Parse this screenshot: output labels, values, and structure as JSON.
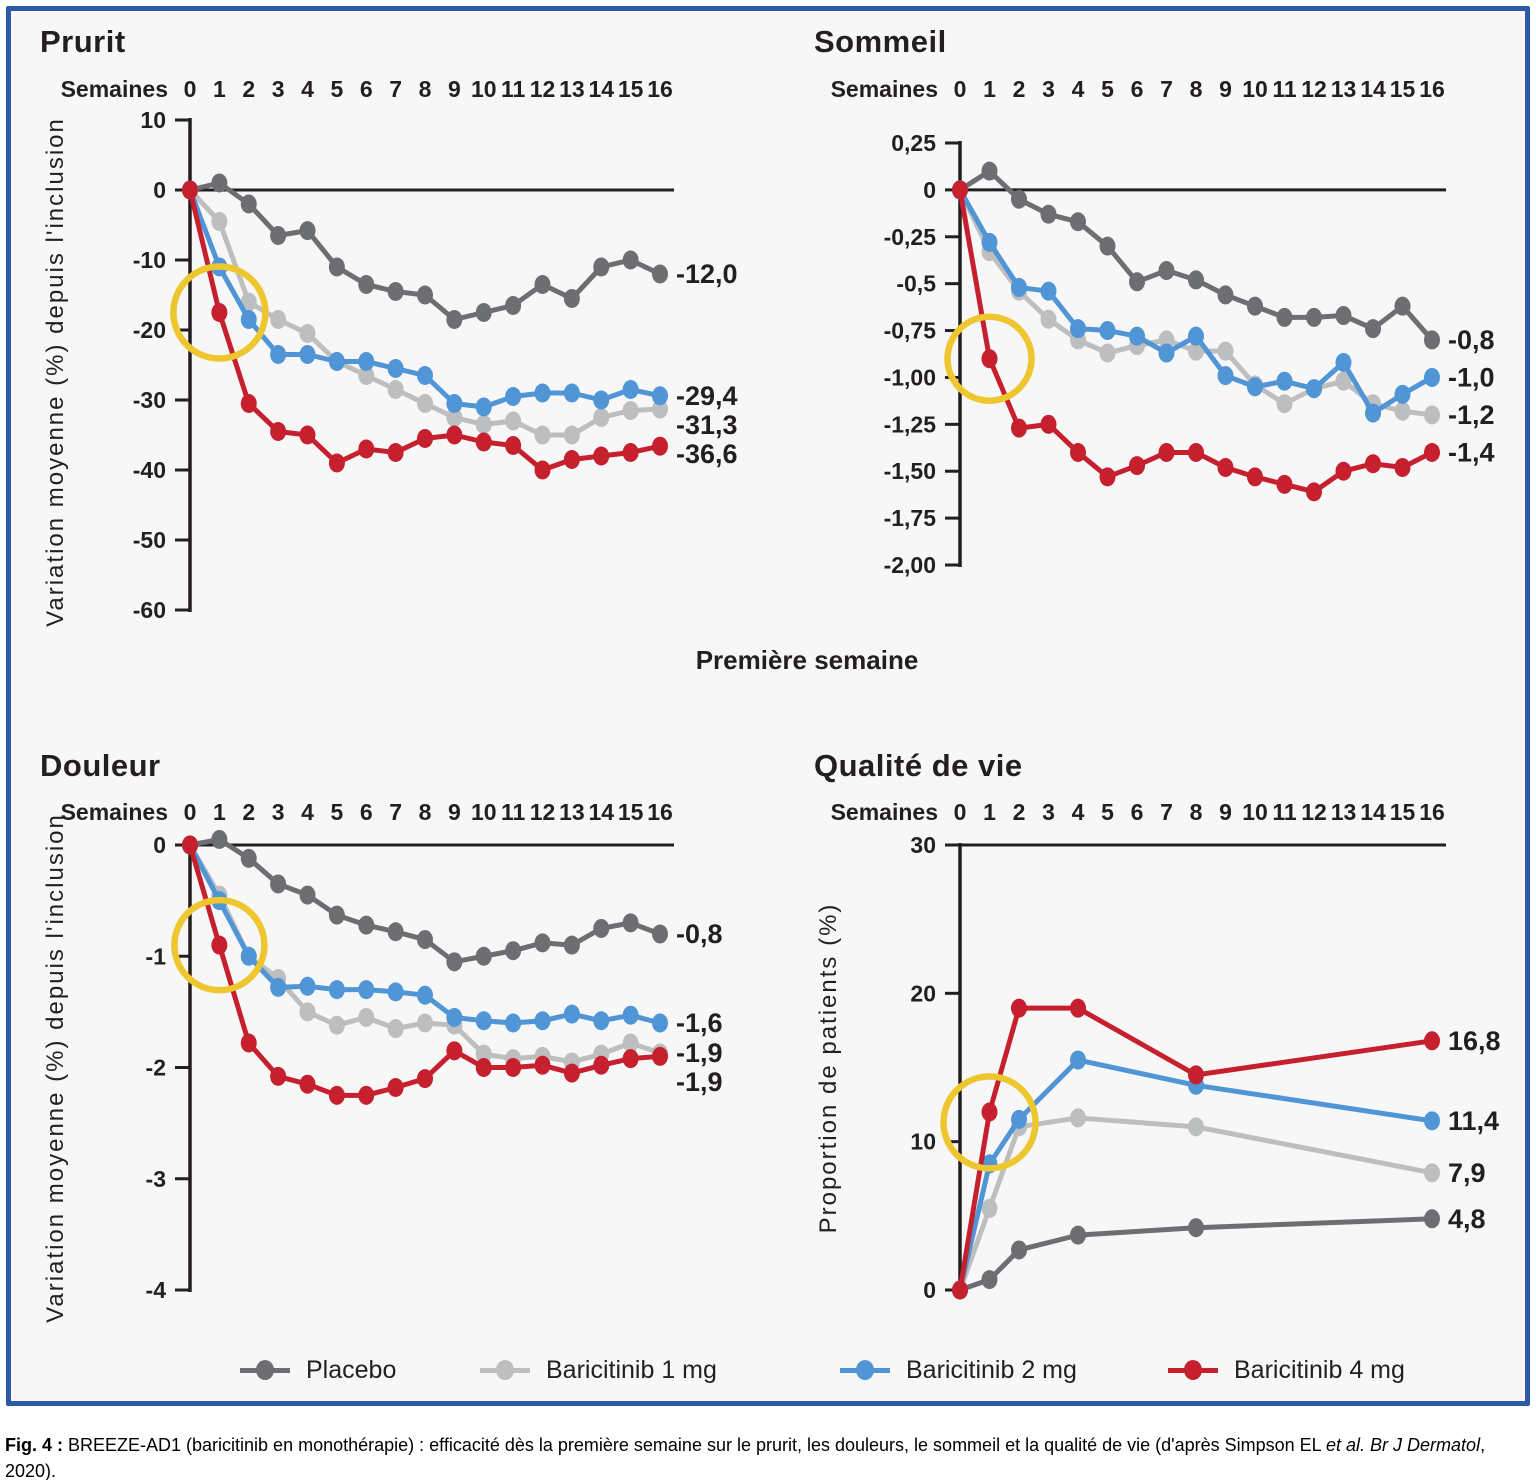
{
  "figure": {
    "annotation_box": "Première semaine",
    "caption": {
      "label": "Fig. 4 :",
      "text_before_italic": " BREEZE-AD1 (baricitinib en monothérapie) : efficacité dès la première semaine sur le prurit, les douleurs, le sommeil et la qualité de vie (d'après Simpson EL ",
      "italic": "et al. Br J Dermatol",
      "text_after_italic": ", 2020)."
    }
  },
  "colors": {
    "placebo": "#6d6e71",
    "placebo_label": "#95979a",
    "baricitinib_1mg": "#bcbec0",
    "baricitinib_2mg": "#5095d5",
    "baricitinib_4mg": "#c6202e",
    "highlight_yellow": "#eec62f",
    "panel_border_blue": "#2c5aa7",
    "axis_black": "#231f20"
  },
  "legend": [
    {
      "name": "Placebo",
      "color_key": "placebo"
    },
    {
      "name": "Baricitinib 1 mg",
      "color_key": "baricitinib_1mg"
    },
    {
      "name": "Baricitinib 2 mg",
      "color_key": "baricitinib_2mg"
    },
    {
      "name": "Baricitinib 4 mg",
      "color_key": "baricitinib_4mg"
    }
  ],
  "chart_data": [
    {
      "type": "line",
      "title": "Prurit",
      "x_axis_label": "Semaines",
      "x_ticks": [
        "0",
        "1",
        "2",
        "3",
        "4",
        "5",
        "6",
        "7",
        "8",
        "9",
        "10",
        "11",
        "12",
        "13",
        "14",
        "15",
        "16"
      ],
      "x": [
        0,
        1,
        2,
        3,
        4,
        5,
        6,
        7,
        8,
        9,
        10,
        11,
        12,
        13,
        14,
        15,
        16
      ],
      "ylabel": "Variation moyenne (%) depuis l'inclusion",
      "ylim": [
        10,
        -60
      ],
      "y_ticks": [
        {
          "v": 10,
          "label": "10"
        },
        {
          "v": 0,
          "label": "0"
        },
        {
          "v": -10,
          "label": "-10"
        },
        {
          "v": -20,
          "label": "-20"
        },
        {
          "v": -30,
          "label": "-30"
        },
        {
          "v": -40,
          "label": "-40"
        },
        {
          "v": -50,
          "label": "-50"
        },
        {
          "v": -60,
          "label": "-60"
        }
      ],
      "highlight_week": 1,
      "series": [
        {
          "name": "Placebo",
          "color_key": "placebo",
          "label_color_key": "placebo_label",
          "values": [
            0,
            1,
            -2,
            -6.5,
            -5.8,
            -11,
            -13.5,
            -14.5,
            -15,
            -18.5,
            -17.5,
            -16.5,
            -13.5,
            -15.5,
            -11,
            -10,
            -12
          ],
          "end_label": "-12,0"
        },
        {
          "name": "Baricitinib 1 mg",
          "color_key": "baricitinib_1mg",
          "values": [
            0,
            -4.5,
            -16,
            -18.5,
            -20.5,
            -24.5,
            -26.5,
            -28.5,
            -30.5,
            -32.5,
            -33.5,
            -33,
            -35,
            -35,
            -32.5,
            -31.5,
            -31.3
          ],
          "end_label": "-31,3"
        },
        {
          "name": "Baricitinib 2 mg",
          "color_key": "baricitinib_2mg",
          "values": [
            0,
            -11,
            -18.5,
            -23.5,
            -23.5,
            -24.5,
            -24.5,
            -25.5,
            -26.5,
            -30.5,
            -31,
            -29.5,
            -29,
            -29,
            -30,
            -28.5,
            -29.4
          ],
          "end_label": "-29,4"
        },
        {
          "name": "Baricitinib 4 mg",
          "color_key": "baricitinib_4mg",
          "values": [
            0,
            -17.5,
            -30.5,
            -34.5,
            -35,
            -39,
            -37,
            -37.5,
            -35.5,
            -35,
            -36,
            -36.5,
            -40,
            -38.5,
            -38,
            -37.5,
            -36.6
          ],
          "end_label": "-36,6"
        }
      ]
    },
    {
      "type": "line",
      "title": "Sommeil",
      "x_axis_label": "Semaines",
      "x_ticks": [
        "0",
        "1",
        "2",
        "3",
        "4",
        "5",
        "6",
        "7",
        "8",
        "9",
        "10",
        "11",
        "12",
        "13",
        "14",
        "15",
        "16"
      ],
      "x": [
        0,
        1,
        2,
        3,
        4,
        5,
        6,
        7,
        8,
        9,
        10,
        11,
        12,
        13,
        14,
        15,
        16
      ],
      "ylabel": "",
      "ylim": [
        0.25,
        -2
      ],
      "y_ticks": [
        {
          "v": 0.25,
          "label": "0,25"
        },
        {
          "v": 0,
          "label": "0"
        },
        {
          "v": -0.25,
          "label": "-0,25"
        },
        {
          "v": -0.5,
          "label": "-0,5"
        },
        {
          "v": -0.75,
          "label": "-0,75"
        },
        {
          "v": -1,
          "label": "-1,00"
        },
        {
          "v": -1.25,
          "label": "-1,25"
        },
        {
          "v": -1.5,
          "label": "-1,50"
        },
        {
          "v": -1.75,
          "label": "-1,75"
        },
        {
          "v": -2,
          "label": "-2,00"
        }
      ],
      "highlight_week": 1,
      "series": [
        {
          "name": "Placebo",
          "color_key": "placebo",
          "label_color_key": "placebo_label",
          "values": [
            0,
            0.1,
            -0.05,
            -0.13,
            -0.17,
            -0.3,
            -0.49,
            -0.43,
            -0.48,
            -0.56,
            -0.62,
            -0.68,
            -0.68,
            -0.67,
            -0.74,
            -0.62,
            -0.8
          ],
          "end_label": "-0,8"
        },
        {
          "name": "Baricitinib 1 mg",
          "color_key": "baricitinib_1mg",
          "values": [
            0,
            -0.33,
            -0.54,
            -0.69,
            -0.8,
            -0.87,
            -0.83,
            -0.8,
            -0.86,
            -0.86,
            -1.04,
            -1.14,
            -1.06,
            -1.02,
            -1.14,
            -1.18,
            -1.2
          ],
          "end_label": "-1,2"
        },
        {
          "name": "Baricitinib 2 mg",
          "color_key": "baricitinib_2mg",
          "values": [
            0,
            -0.28,
            -0.52,
            -0.54,
            -0.74,
            -0.75,
            -0.78,
            -0.87,
            -0.78,
            -0.99,
            -1.05,
            -1.02,
            -1.06,
            -0.92,
            -1.19,
            -1.09,
            -1.0
          ],
          "end_label": "-1,0"
        },
        {
          "name": "Baricitinib 4 mg",
          "color_key": "baricitinib_4mg",
          "values": [
            0,
            -0.9,
            -1.27,
            -1.25,
            -1.4,
            -1.53,
            -1.47,
            -1.4,
            -1.4,
            -1.48,
            -1.53,
            -1.57,
            -1.61,
            -1.5,
            -1.46,
            -1.48,
            -1.4
          ],
          "end_label": "-1,4"
        }
      ]
    },
    {
      "type": "line",
      "title": "Douleur",
      "x_axis_label": "Semaines",
      "x_ticks": [
        "0",
        "1",
        "2",
        "3",
        "4",
        "5",
        "6",
        "7",
        "8",
        "9",
        "10",
        "11",
        "12",
        "13",
        "14",
        "15",
        "16"
      ],
      "x": [
        0,
        1,
        2,
        3,
        4,
        5,
        6,
        7,
        8,
        9,
        10,
        11,
        12,
        13,
        14,
        15,
        16
      ],
      "ylabel": "Variation moyenne (%) depuis l'inclusion",
      "ylim": [
        0,
        -4
      ],
      "y_ticks": [
        {
          "v": 0,
          "label": "0"
        },
        {
          "v": -1,
          "label": "-1"
        },
        {
          "v": -2,
          "label": "-2"
        },
        {
          "v": -3,
          "label": "-3"
        },
        {
          "v": -4,
          "label": "-4"
        }
      ],
      "highlight_week": 1,
      "series": [
        {
          "name": "Placebo",
          "color_key": "placebo",
          "label_color_key": "placebo_label",
          "values": [
            0,
            0.05,
            -0.12,
            -0.35,
            -0.45,
            -0.63,
            -0.72,
            -0.78,
            -0.85,
            -1.05,
            -1.0,
            -0.95,
            -0.88,
            -0.9,
            -0.75,
            -0.7,
            -0.8
          ],
          "end_label": "-0,8"
        },
        {
          "name": "Baricitinib 1 mg",
          "color_key": "baricitinib_1mg",
          "values": [
            0,
            -0.45,
            -1.0,
            -1.2,
            -1.5,
            -1.62,
            -1.55,
            -1.65,
            -1.6,
            -1.62,
            -1.88,
            -1.92,
            -1.9,
            -1.95,
            -1.88,
            -1.78,
            -1.87
          ],
          "end_label": "-1,9"
        },
        {
          "name": "Baricitinib 2 mg",
          "color_key": "baricitinib_2mg",
          "values": [
            0,
            -0.5,
            -1.0,
            -1.28,
            -1.27,
            -1.3,
            -1.3,
            -1.32,
            -1.35,
            -1.55,
            -1.58,
            -1.6,
            -1.58,
            -1.52,
            -1.58,
            -1.53,
            -1.6
          ],
          "end_label": "-1,6"
        },
        {
          "name": "Baricitinib 4 mg",
          "color_key": "baricitinib_4mg",
          "values": [
            0,
            -0.9,
            -1.78,
            -2.08,
            -2.15,
            -2.25,
            -2.25,
            -2.18,
            -2.1,
            -1.85,
            -2.0,
            -2.0,
            -1.98,
            -2.05,
            -1.98,
            -1.92,
            -1.9
          ],
          "end_label": "-1,9"
        }
      ]
    },
    {
      "type": "line",
      "title": "Qualité de vie",
      "x_axis_label": "Semaines",
      "x_ticks": [
        "0",
        "1",
        "2",
        "3",
        "4",
        "5",
        "6",
        "7",
        "8",
        "9",
        "10",
        "11",
        "12",
        "13",
        "14",
        "15",
        "16"
      ],
      "x": [
        0,
        1,
        2,
        4,
        8,
        16
      ],
      "ylabel": "Proportion de patients (%)",
      "ylim": [
        30,
        0
      ],
      "y_ticks": [
        {
          "v": 30,
          "label": "30"
        },
        {
          "v": 20,
          "label": "20"
        },
        {
          "v": 10,
          "label": "10"
        },
        {
          "v": 0,
          "label": "0"
        }
      ],
      "highlight_week": 1,
      "series": [
        {
          "name": "Placebo",
          "color_key": "placebo",
          "label_color_key": "placebo_label",
          "values": [
            0,
            0.7,
            2.7,
            3.7,
            4.2,
            4.8
          ],
          "end_label": "4,8"
        },
        {
          "name": "Baricitinib 1 mg",
          "color_key": "baricitinib_1mg",
          "values": [
            0,
            5.5,
            11,
            11.6,
            11,
            7.9
          ],
          "end_label": "7,9"
        },
        {
          "name": "Baricitinib 2 mg",
          "color_key": "baricitinib_2mg",
          "values": [
            0,
            8.5,
            11.5,
            15.5,
            13.8,
            11.4
          ],
          "end_label": "11,4"
        },
        {
          "name": "Baricitinib 4 mg",
          "color_key": "baricitinib_4mg",
          "values": [
            0,
            12,
            19,
            19,
            14.5,
            16.8
          ],
          "end_label": "16,8"
        }
      ]
    }
  ]
}
